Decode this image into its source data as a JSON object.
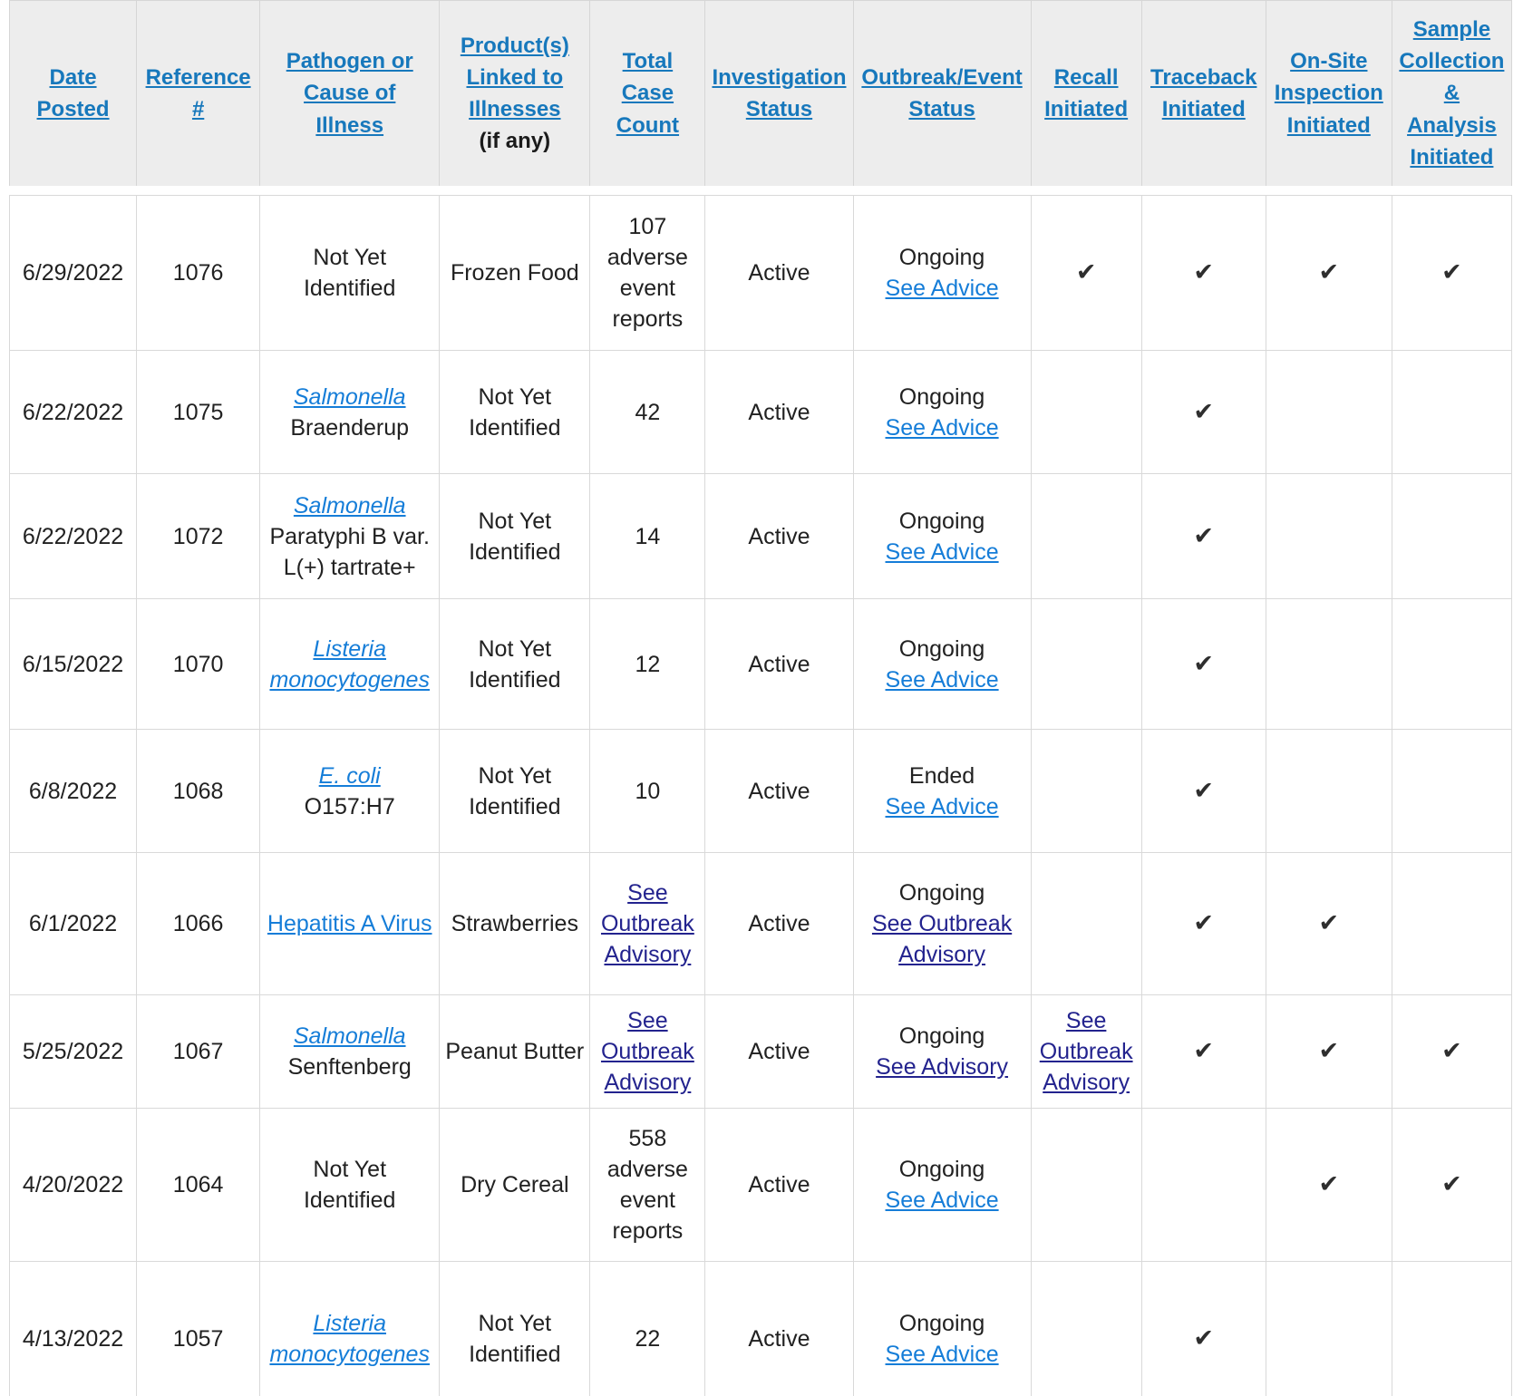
{
  "icons": {
    "check": "✔"
  },
  "colors": {
    "header_link": "#1778bc",
    "link": "#157dd8",
    "visited": "#23238e",
    "text": "#212121",
    "grid": "#d9d9d9",
    "header_bg": "#ededed",
    "check": "#2e2e2e"
  },
  "table": {
    "headers": [
      {
        "label": "Date\nPosted"
      },
      {
        "label": "Reference\n#"
      },
      {
        "label": "Pathogen or\nCause of\nIllness"
      },
      {
        "label": "Product(s)\nLinked to\nIllnesses",
        "suffix": "(if any)"
      },
      {
        "label": "Total\nCase\nCount"
      },
      {
        "label": "Investigation\nStatus"
      },
      {
        "label": "Outbreak/Event\nStatus"
      },
      {
        "label": "Recall\nInitiated"
      },
      {
        "label": "Traceback\nInitiated"
      },
      {
        "label": "On-Site\nInspection\nInitiated"
      },
      {
        "label": "Sample\nCollection\n&\nAnalysis\nInitiated"
      }
    ],
    "rows": [
      {
        "date": "6/29/2022",
        "ref": "1076",
        "pathogen": {
          "text": "Not Yet Identified"
        },
        "product": "Frozen Food",
        "cases": {
          "text": "107 adverse event reports"
        },
        "investigation": "Active",
        "outbreak": {
          "status": "Ongoing",
          "link": "See Advice",
          "visited": false
        },
        "recall": {
          "check": true
        },
        "traceback": {
          "check": true
        },
        "onsite": {
          "check": true
        },
        "sample": {
          "check": true
        }
      },
      {
        "date": "6/22/2022",
        "ref": "1075",
        "pathogen": {
          "link": "Salmonella",
          "italic": true,
          "sub": "Braenderup"
        },
        "product": "Not Yet Identified",
        "cases": {
          "text": "42"
        },
        "investigation": "Active",
        "outbreak": {
          "status": "Ongoing",
          "link": "See Advice",
          "visited": false
        },
        "traceback": {
          "check": true
        }
      },
      {
        "date": "6/22/2022",
        "ref": "1072",
        "pathogen": {
          "link": "Salmonella",
          "italic": true,
          "sub": "Paratyphi B var. L(+) tartrate+"
        },
        "product": "Not Yet Identified",
        "cases": {
          "text": "14"
        },
        "investigation": "Active",
        "outbreak": {
          "status": "Ongoing",
          "link": "See Advice",
          "visited": false
        },
        "traceback": {
          "check": true
        }
      },
      {
        "date": "6/15/2022",
        "ref": "1070",
        "pathogen": {
          "link": "Listeria monocytogenes",
          "italic": true
        },
        "product": "Not Yet Identified",
        "cases": {
          "text": "12"
        },
        "investigation": "Active",
        "outbreak": {
          "status": "Ongoing",
          "link": "See Advice",
          "visited": false
        },
        "traceback": {
          "check": true
        }
      },
      {
        "date": "6/8/2022",
        "ref": "1068",
        "pathogen": {
          "link": "E. coli",
          "italic": true,
          "sub": "O157:H7"
        },
        "product": "Not Yet Identified",
        "cases": {
          "text": "10"
        },
        "investigation": "Active",
        "outbreak": {
          "status": "Ended",
          "link": "See Advice",
          "visited": false
        },
        "traceback": {
          "check": true
        }
      },
      {
        "date": "6/1/2022",
        "ref": "1066",
        "pathogen": {
          "link": "Hepatitis A Virus",
          "italic": false
        },
        "product": "Strawberries",
        "cases": {
          "link": "See Outbreak Advisory",
          "visited": true
        },
        "investigation": "Active",
        "outbreak": {
          "status": "Ongoing",
          "link": "See Outbreak Advisory",
          "visited": true
        },
        "traceback": {
          "check": true
        },
        "onsite": {
          "check": true
        }
      },
      {
        "date": "5/25/2022",
        "ref": "1067",
        "pathogen": {
          "link": "Salmonella",
          "italic": true,
          "sub": "Senftenberg"
        },
        "product": "Peanut Butter",
        "cases": {
          "link": "See Outbreak Advisory",
          "visited": true
        },
        "investigation": "Active",
        "outbreak": {
          "status": "Ongoing",
          "link": "See Advisory",
          "visited": true
        },
        "recall": {
          "link": "See Outbreak Advisory",
          "visited": true
        },
        "traceback": {
          "check": true
        },
        "onsite": {
          "check": true
        },
        "sample": {
          "check": true
        }
      },
      {
        "date": "4/20/2022",
        "ref": "1064",
        "pathogen": {
          "text": "Not Yet Identified"
        },
        "product": "Dry Cereal",
        "cases": {
          "text": "558 adverse event reports"
        },
        "investigation": "Active",
        "outbreak": {
          "status": "Ongoing",
          "link": "See Advice",
          "visited": false
        },
        "onsite": {
          "check": true
        },
        "sample": {
          "check": true
        }
      },
      {
        "date": "4/13/2022",
        "ref": "1057",
        "pathogen": {
          "link": "Listeria monocytogenes",
          "italic": true
        },
        "product": "Not Yet Identified",
        "cases": {
          "text": "22"
        },
        "investigation": "Active",
        "outbreak": {
          "status": "Ongoing",
          "link": "See Advice",
          "visited": false
        },
        "traceback": {
          "check": true
        }
      }
    ]
  }
}
